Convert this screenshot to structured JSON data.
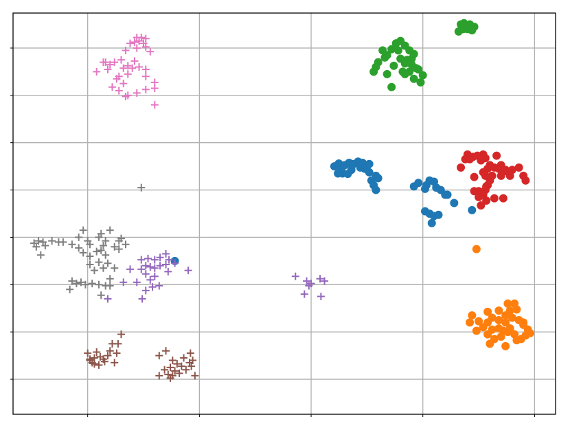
{
  "chart_data": {
    "type": "scatter",
    "title": "",
    "xlabel": "",
    "ylabel": "",
    "xlim": [
      -2.67,
      9.47
    ],
    "ylim": [
      -8.48,
      8.48
    ],
    "xticks": [
      -1,
      1.5,
      4,
      6.5,
      9
    ],
    "yticks": [
      -7,
      -5,
      -3,
      -1,
      1,
      3,
      5,
      7
    ],
    "grid": true,
    "legend": "none",
    "series": [
      {
        "marker": "circle",
        "color": "#1f77b4",
        "points": [
          [
            4.52,
            2.0
          ],
          [
            4.62,
            2.12
          ],
          [
            4.75,
            2.05
          ],
          [
            4.85,
            2.15
          ],
          [
            4.7,
            1.7
          ],
          [
            4.6,
            1.7
          ],
          [
            4.9,
            1.85
          ],
          [
            4.95,
            2.1
          ],
          [
            5.05,
            2.2
          ],
          [
            5.15,
            2.15
          ],
          [
            5.25,
            2.0
          ],
          [
            5.2,
            1.9
          ],
          [
            5.1,
            1.95
          ],
          [
            5.3,
            1.75
          ],
          [
            5.45,
            1.6
          ],
          [
            5.5,
            1.5
          ],
          [
            5.35,
            1.4
          ],
          [
            5.4,
            1.2
          ],
          [
            5.45,
            1.0
          ],
          [
            4.82,
            1.68
          ],
          [
            4.68,
            1.9
          ],
          [
            5.3,
            2.1
          ],
          [
            6.4,
            1.3
          ],
          [
            6.55,
            1.05
          ],
          [
            6.65,
            1.4
          ],
          [
            6.75,
            1.35
          ],
          [
            6.8,
            1.1
          ],
          [
            6.9,
            1.0
          ],
          [
            7.0,
            0.8
          ],
          [
            7.05,
            0.8
          ],
          [
            7.2,
            0.45
          ],
          [
            6.3,
            1.15
          ],
          [
            6.58,
            1.2
          ],
          [
            6.55,
            0.1
          ],
          [
            6.65,
            0.0
          ],
          [
            6.75,
            -0.1
          ],
          [
            6.85,
            -0.05
          ],
          [
            6.7,
            -0.4
          ],
          [
            7.6,
            0.15
          ],
          [
            0.95,
            -2.0
          ]
        ]
      },
      {
        "marker": "circle",
        "color": "#ff7f0e",
        "points": [
          [
            7.7,
            -1.5
          ],
          [
            8.4,
            -3.8
          ],
          [
            8.55,
            -3.8
          ],
          [
            8.6,
            -4.05
          ],
          [
            8.45,
            -4.1
          ],
          [
            8.35,
            -4.3
          ],
          [
            8.2,
            -4.1
          ],
          [
            8.05,
            -4.4
          ],
          [
            7.95,
            -4.6
          ],
          [
            8.05,
            -4.9
          ],
          [
            8.2,
            -4.5
          ],
          [
            8.35,
            -4.6
          ],
          [
            8.5,
            -4.4
          ],
          [
            8.65,
            -4.5
          ],
          [
            8.75,
            -4.7
          ],
          [
            8.85,
            -4.9
          ],
          [
            8.8,
            -5.15
          ],
          [
            8.7,
            -5.3
          ],
          [
            8.55,
            -5.1
          ],
          [
            8.4,
            -5.0
          ],
          [
            8.25,
            -5.2
          ],
          [
            8.1,
            -5.3
          ],
          [
            7.95,
            -5.1
          ],
          [
            7.85,
            -4.8
          ],
          [
            7.7,
            -4.95
          ],
          [
            7.75,
            -4.55
          ],
          [
            7.6,
            -4.3
          ],
          [
            7.55,
            -4.6
          ],
          [
            7.95,
            -4.15
          ],
          [
            8.2,
            -4.85
          ],
          [
            8.45,
            -4.85
          ],
          [
            8.6,
            -5.35
          ],
          [
            8.35,
            -5.6
          ],
          [
            8.0,
            -5.5
          ],
          [
            8.9,
            -5.05
          ],
          [
            8.75,
            -4.6
          ],
          [
            8.3,
            -4.95
          ]
        ]
      },
      {
        "marker": "circle",
        "color": "#2ca02c",
        "points": [
          [
            7.35,
            8.0
          ],
          [
            7.45,
            7.95
          ],
          [
            7.55,
            8.0
          ],
          [
            7.65,
            7.9
          ],
          [
            7.5,
            7.8
          ],
          [
            7.4,
            7.8
          ],
          [
            7.3,
            7.7
          ],
          [
            7.6,
            7.75
          ],
          [
            7.42,
            8.05
          ],
          [
            7.48,
            7.92
          ],
          [
            5.9,
            7.2
          ],
          [
            6.0,
            7.3
          ],
          [
            6.1,
            7.1
          ],
          [
            5.95,
            6.9
          ],
          [
            6.2,
            6.9
          ],
          [
            6.3,
            6.75
          ],
          [
            6.15,
            6.5
          ],
          [
            6.25,
            6.3
          ],
          [
            6.35,
            6.15
          ],
          [
            6.2,
            6.0
          ],
          [
            6.1,
            5.9
          ],
          [
            6.3,
            5.7
          ],
          [
            6.45,
            5.55
          ],
          [
            5.8,
            6.95
          ],
          [
            5.7,
            6.7
          ],
          [
            5.6,
            6.9
          ],
          [
            5.65,
            6.6
          ],
          [
            5.45,
            6.2
          ],
          [
            5.5,
            6.4
          ],
          [
            5.4,
            6.0
          ],
          [
            5.7,
            5.9
          ],
          [
            5.85,
            6.25
          ],
          [
            6.0,
            6.55
          ],
          [
            6.5,
            5.85
          ],
          [
            5.8,
            5.35
          ],
          [
            6.4,
            6.1
          ],
          [
            6.05,
            6.0
          ],
          [
            6.25,
            6.55
          ],
          [
            6.1,
            6.35
          ]
        ]
      },
      {
        "marker": "circle",
        "color": "#d62728",
        "points": [
          [
            7.5,
            2.5
          ],
          [
            7.62,
            2.4
          ],
          [
            7.72,
            2.45
          ],
          [
            7.85,
            2.5
          ],
          [
            8.15,
            2.45
          ],
          [
            7.8,
            2.25
          ],
          [
            7.9,
            2.35
          ],
          [
            7.55,
            2.3
          ],
          [
            7.45,
            2.3
          ],
          [
            8.0,
            2.05
          ],
          [
            8.1,
            1.95
          ],
          [
            7.95,
            1.9
          ],
          [
            7.85,
            1.75
          ],
          [
            8.2,
            1.9
          ],
          [
            8.35,
            1.8
          ],
          [
            8.5,
            1.85
          ],
          [
            8.65,
            1.95
          ],
          [
            8.75,
            1.6
          ],
          [
            8.8,
            1.4
          ],
          [
            8.45,
            1.6
          ],
          [
            8.25,
            1.6
          ],
          [
            8.05,
            1.6
          ],
          [
            7.9,
            1.6
          ],
          [
            7.65,
            1.55
          ],
          [
            7.35,
            1.95
          ],
          [
            8.25,
            2.05
          ],
          [
            8.0,
            1.4
          ],
          [
            7.95,
            1.2
          ],
          [
            7.9,
            1.0
          ],
          [
            7.85,
            0.8
          ],
          [
            7.75,
            0.7
          ],
          [
            7.75,
            0.95
          ],
          [
            7.65,
            0.95
          ],
          [
            7.8,
            0.35
          ],
          [
            7.92,
            0.55
          ],
          [
            8.1,
            0.65
          ],
          [
            8.3,
            0.65
          ],
          [
            7.92,
            1.15
          ],
          [
            8.35,
            1.85
          ]
        ]
      },
      {
        "marker": "plus",
        "color": "#9467bd",
        "points": [
          [
            0.2,
            -1.95
          ],
          [
            0.35,
            -1.9
          ],
          [
            0.5,
            -1.95
          ],
          [
            0.62,
            -1.85
          ],
          [
            0.75,
            -1.7
          ],
          [
            0.82,
            -1.95
          ],
          [
            0.2,
            -2.35
          ],
          [
            0.3,
            -2.2
          ],
          [
            0.4,
            -2.25
          ],
          [
            0.5,
            -2.3
          ],
          [
            0.62,
            -2.2
          ],
          [
            0.75,
            -2.15
          ],
          [
            0.8,
            -2.45
          ],
          [
            0.3,
            -2.55
          ],
          [
            0.4,
            -2.8
          ],
          [
            0.45,
            -3.1
          ],
          [
            0.3,
            -3.25
          ],
          [
            0.22,
            -3.6
          ],
          [
            0.1,
            -2.9
          ],
          [
            -0.05,
            -2.35
          ],
          [
            -0.2,
            -2.9
          ],
          [
            0.5,
            -2.65
          ],
          [
            -0.55,
            -3.6
          ],
          [
            0.6,
            -3.05
          ],
          [
            1.25,
            -2.4
          ],
          [
            0.95,
            -2.1
          ],
          [
            3.65,
            -2.65
          ],
          [
            3.9,
            -2.85
          ],
          [
            3.95,
            -3.05
          ],
          [
            4.2,
            -2.75
          ],
          [
            4.3,
            -2.85
          ],
          [
            3.85,
            -3.4
          ],
          [
            4.22,
            -3.5
          ],
          [
            4.0,
            -2.95
          ]
        ]
      },
      {
        "marker": "plus",
        "color": "#8c564b",
        "points": [
          [
            -1.0,
            -5.9
          ],
          [
            -0.95,
            -6.15
          ],
          [
            -0.85,
            -6.1
          ],
          [
            -0.8,
            -5.85
          ],
          [
            -0.9,
            -6.3
          ],
          [
            -0.75,
            -6.4
          ],
          [
            -0.65,
            -6.15
          ],
          [
            -0.5,
            -5.8
          ],
          [
            -0.4,
            -6.3
          ],
          [
            -0.55,
            -6.0
          ],
          [
            -0.35,
            -5.9
          ],
          [
            -0.45,
            -5.5
          ],
          [
            -0.32,
            -5.5
          ],
          [
            -0.25,
            -5.1
          ],
          [
            -0.95,
            -6.2
          ],
          [
            -0.85,
            -6.35
          ],
          [
            -0.72,
            -6.05
          ],
          [
            -0.62,
            -6.25
          ],
          [
            0.6,
            -6.0
          ],
          [
            0.75,
            -5.8
          ],
          [
            0.9,
            -6.2
          ],
          [
            1.0,
            -6.35
          ],
          [
            0.85,
            -6.5
          ],
          [
            0.95,
            -6.65
          ],
          [
            0.8,
            -6.8
          ],
          [
            0.9,
            -6.85
          ],
          [
            1.05,
            -6.75
          ],
          [
            1.2,
            -6.6
          ],
          [
            1.32,
            -6.45
          ],
          [
            1.4,
            -6.85
          ],
          [
            1.28,
            -6.3
          ],
          [
            1.15,
            -6.1
          ],
          [
            1.3,
            -5.9
          ],
          [
            0.6,
            -6.85
          ],
          [
            0.85,
            -6.95
          ],
          [
            0.72,
            -6.6
          ],
          [
            1.1,
            -6.45
          ],
          [
            1.35,
            -6.2
          ]
        ]
      },
      {
        "marker": "plus",
        "color": "#e377c2",
        "points": [
          [
            0.1,
            7.45
          ],
          [
            0.2,
            7.45
          ],
          [
            0.3,
            7.4
          ],
          [
            0.05,
            7.25
          ],
          [
            0.15,
            7.3
          ],
          [
            0.25,
            7.2
          ],
          [
            -0.05,
            7.2
          ],
          [
            0.1,
            7.0
          ],
          [
            0.3,
            7.05
          ],
          [
            0.4,
            6.85
          ],
          [
            -0.15,
            6.9
          ],
          [
            -0.6,
            6.4
          ],
          [
            -0.4,
            6.4
          ],
          [
            -0.5,
            6.3
          ],
          [
            -0.2,
            6.15
          ],
          [
            0.0,
            6.15
          ],
          [
            0.15,
            6.2
          ],
          [
            0.3,
            6.1
          ],
          [
            -0.1,
            6.25
          ],
          [
            -0.65,
            6.4
          ],
          [
            -0.8,
            6.0
          ],
          [
            -0.55,
            6.1
          ],
          [
            -0.3,
            5.8
          ],
          [
            -0.1,
            5.9
          ],
          [
            -0.2,
            5.5
          ],
          [
            0.3,
            5.8
          ],
          [
            0.5,
            5.55
          ],
          [
            0.3,
            5.25
          ],
          [
            -0.1,
            5.0
          ],
          [
            -0.3,
            5.2
          ],
          [
            0.5,
            5.3
          ],
          [
            0.1,
            5.1
          ],
          [
            -0.45,
            5.35
          ],
          [
            -0.15,
            4.95
          ],
          [
            0.5,
            4.6
          ],
          [
            -0.25,
            6.5
          ],
          [
            0.05,
            6.45
          ],
          [
            -0.35,
            5.7
          ]
        ]
      },
      {
        "marker": "plus",
        "color": "#7f7f7f",
        "points": [
          [
            0.2,
            1.1
          ],
          [
            -1.1,
            -0.7
          ],
          [
            -0.5,
            -0.7
          ],
          [
            -0.75,
            -1.0
          ],
          [
            -1.0,
            -1.15
          ],
          [
            -1.2,
            -1.0
          ],
          [
            -1.35,
            -1.3
          ],
          [
            -1.2,
            -1.45
          ],
          [
            -1.1,
            -1.65
          ],
          [
            -0.95,
            -1.8
          ],
          [
            -0.8,
            -1.6
          ],
          [
            -0.7,
            -1.55
          ],
          [
            -0.65,
            -1.35
          ],
          [
            -0.6,
            -1.15
          ],
          [
            -0.7,
            -0.85
          ],
          [
            -0.95,
            -1.3
          ],
          [
            -0.4,
            -1.4
          ],
          [
            -0.3,
            -1.15
          ],
          [
            -0.3,
            -1.5
          ],
          [
            -0.15,
            -1.3
          ],
          [
            -0.25,
            -1.05
          ],
          [
            -0.6,
            -1.75
          ],
          [
            -0.75,
            -2.05
          ],
          [
            -0.95,
            -2.15
          ],
          [
            -0.85,
            -2.4
          ],
          [
            -2.2,
            -1.25
          ],
          [
            -2.1,
            -1.15
          ],
          [
            -2.0,
            -1.2
          ],
          [
            -1.95,
            -1.35
          ],
          [
            -2.15,
            -1.4
          ],
          [
            -1.8,
            -1.15
          ],
          [
            -1.65,
            -1.2
          ],
          [
            -1.55,
            -1.2
          ],
          [
            -2.05,
            -1.75
          ],
          [
            -1.35,
            -2.85
          ],
          [
            -1.4,
            -3.2
          ],
          [
            -1.25,
            -2.95
          ],
          [
            -1.15,
            -2.9
          ],
          [
            -1.05,
            -3.0
          ],
          [
            -0.9,
            -2.95
          ],
          [
            -0.75,
            -3.0
          ],
          [
            -0.6,
            -3.05
          ],
          [
            -0.5,
            -2.75
          ],
          [
            -0.7,
            -3.45
          ],
          [
            -0.5,
            -3.05
          ],
          [
            -0.4,
            -2.3
          ],
          [
            -0.55,
            -2.1
          ],
          [
            -0.65,
            -2.3
          ]
        ]
      }
    ]
  }
}
